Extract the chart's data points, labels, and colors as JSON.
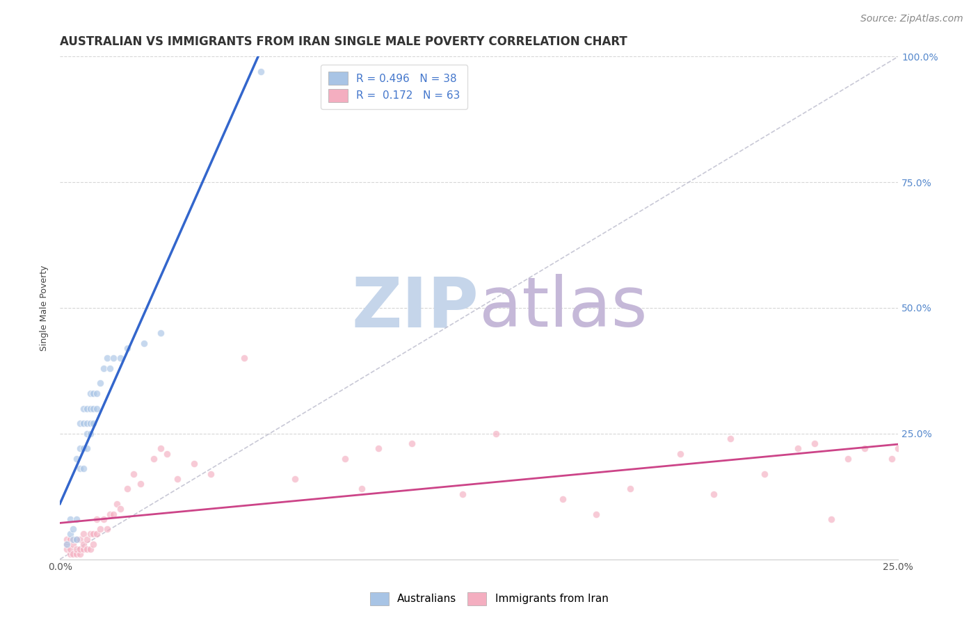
{
  "title": "AUSTRALIAN VS IMMIGRANTS FROM IRAN SINGLE MALE POVERTY CORRELATION CHART",
  "source": "Source: ZipAtlas.com",
  "ylabel": "Single Male Poverty",
  "right_yticks": [
    "100.0%",
    "75.0%",
    "50.0%",
    "25.0%"
  ],
  "right_ytick_vals": [
    1.0,
    0.75,
    0.5,
    0.25
  ],
  "aus_color": "#a8c4e5",
  "iran_color": "#f4aec0",
  "aus_line_color": "#3366cc",
  "iran_line_color": "#cc4488",
  "diag_color": "#bbbbcc",
  "watermark_zip": "ZIP",
  "watermark_atlas": "atlas",
  "watermark_color_zip": "#c8d8ee",
  "watermark_color_atlas": "#c8b8d8",
  "background": "#ffffff",
  "aus_scatter_x": [
    0.002,
    0.003,
    0.003,
    0.004,
    0.004,
    0.005,
    0.005,
    0.005,
    0.006,
    0.006,
    0.006,
    0.007,
    0.007,
    0.007,
    0.007,
    0.008,
    0.008,
    0.008,
    0.008,
    0.009,
    0.009,
    0.009,
    0.009,
    0.01,
    0.01,
    0.01,
    0.011,
    0.011,
    0.012,
    0.013,
    0.014,
    0.015,
    0.016,
    0.018,
    0.02,
    0.025,
    0.03,
    0.06
  ],
  "aus_scatter_y": [
    0.03,
    0.05,
    0.08,
    0.04,
    0.06,
    0.04,
    0.08,
    0.2,
    0.22,
    0.18,
    0.27,
    0.18,
    0.22,
    0.27,
    0.3,
    0.22,
    0.25,
    0.27,
    0.3,
    0.25,
    0.27,
    0.3,
    0.33,
    0.27,
    0.3,
    0.33,
    0.3,
    0.33,
    0.35,
    0.38,
    0.4,
    0.38,
    0.4,
    0.4,
    0.42,
    0.43,
    0.45,
    0.97
  ],
  "iran_scatter_x": [
    0.002,
    0.002,
    0.002,
    0.003,
    0.003,
    0.003,
    0.004,
    0.004,
    0.005,
    0.005,
    0.005,
    0.006,
    0.006,
    0.006,
    0.007,
    0.007,
    0.007,
    0.008,
    0.008,
    0.009,
    0.009,
    0.01,
    0.01,
    0.011,
    0.011,
    0.012,
    0.013,
    0.014,
    0.015,
    0.016,
    0.017,
    0.018,
    0.02,
    0.022,
    0.024,
    0.028,
    0.03,
    0.032,
    0.035,
    0.04,
    0.045,
    0.055,
    0.07,
    0.085,
    0.09,
    0.095,
    0.105,
    0.12,
    0.13,
    0.15,
    0.16,
    0.17,
    0.185,
    0.195,
    0.2,
    0.21,
    0.22,
    0.225,
    0.23,
    0.235,
    0.24,
    0.248,
    0.25
  ],
  "iran_scatter_y": [
    0.03,
    0.02,
    0.04,
    0.01,
    0.02,
    0.04,
    0.01,
    0.03,
    0.01,
    0.02,
    0.04,
    0.01,
    0.02,
    0.04,
    0.02,
    0.03,
    0.05,
    0.02,
    0.04,
    0.02,
    0.05,
    0.03,
    0.05,
    0.05,
    0.08,
    0.06,
    0.08,
    0.06,
    0.09,
    0.09,
    0.11,
    0.1,
    0.14,
    0.17,
    0.15,
    0.2,
    0.22,
    0.21,
    0.16,
    0.19,
    0.17,
    0.4,
    0.16,
    0.2,
    0.14,
    0.22,
    0.23,
    0.13,
    0.25,
    0.12,
    0.09,
    0.14,
    0.21,
    0.13,
    0.24,
    0.17,
    0.22,
    0.23,
    0.08,
    0.2,
    0.22,
    0.2,
    0.22
  ],
  "xlim": [
    0.0,
    0.25
  ],
  "ylim": [
    0.0,
    1.0
  ],
  "title_fontsize": 12,
  "axis_label_fontsize": 9,
  "tick_fontsize": 10,
  "legend_fontsize": 11,
  "source_fontsize": 10,
  "scatter_size": 55,
  "scatter_alpha": 0.65,
  "scatter_lw": 0.8
}
